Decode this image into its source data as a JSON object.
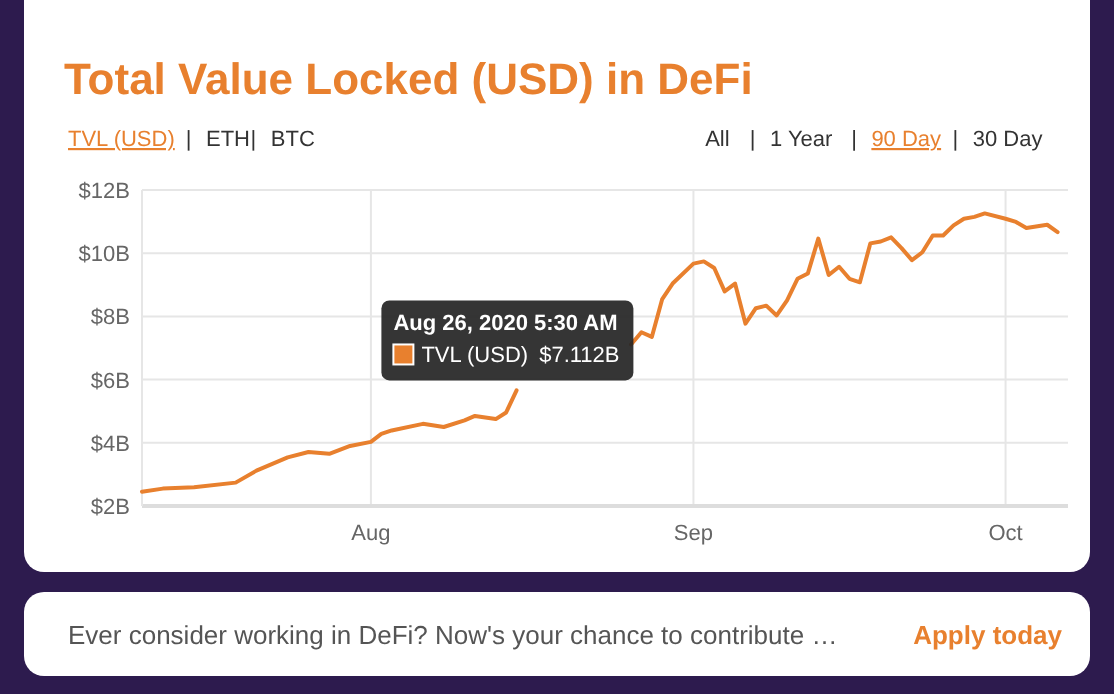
{
  "chart_data": {
    "type": "line",
    "title": "Total Value Locked (USD) in DeFi",
    "x": [
      "2020-07-10",
      "2020-07-12",
      "2020-07-15",
      "2020-07-19",
      "2020-07-21",
      "2020-07-24",
      "2020-07-26",
      "2020-07-28",
      "2020-07-30",
      "2020-08-01",
      "2020-08-02",
      "2020-08-03",
      "2020-08-06",
      "2020-08-08",
      "2020-08-10",
      "2020-08-11",
      "2020-08-13",
      "2020-08-14",
      "2020-08-15",
      "2020-08-16",
      "2020-08-20",
      "2020-08-24",
      "2020-08-26",
      "2020-08-27",
      "2020-08-28",
      "2020-08-29",
      "2020-08-30",
      "2020-09-01",
      "2020-09-02",
      "2020-09-03",
      "2020-09-04",
      "2020-09-05",
      "2020-09-06",
      "2020-09-07",
      "2020-09-08",
      "2020-09-09",
      "2020-09-10",
      "2020-09-11",
      "2020-09-12",
      "2020-09-13",
      "2020-09-14",
      "2020-09-15",
      "2020-09-16",
      "2020-09-17",
      "2020-09-18",
      "2020-09-19",
      "2020-09-20",
      "2020-09-21",
      "2020-09-22",
      "2020-09-23",
      "2020-09-24",
      "2020-09-25",
      "2020-09-26",
      "2020-09-27",
      "2020-09-28",
      "2020-09-29",
      "2020-10-01",
      "2020-10-02",
      "2020-10-03",
      "2020-10-05",
      "2020-10-06"
    ],
    "series": [
      {
        "name": "TVL (USD)",
        "color": "#e8802e",
        "values": [
          2.45,
          2.55,
          2.59,
          2.74,
          3.12,
          3.54,
          3.71,
          3.65,
          3.9,
          4.03,
          4.28,
          4.39,
          4.6,
          4.5,
          4.71,
          4.85,
          4.75,
          4.96,
          5.66,
          null,
          null,
          null,
          7.112,
          7.5,
          7.35,
          8.55,
          9.04,
          9.67,
          9.74,
          9.53,
          8.79,
          9.04,
          7.77,
          8.26,
          8.34,
          8.03,
          8.51,
          9.19,
          9.36,
          10.46,
          9.31,
          9.57,
          9.19,
          9.08,
          10.31,
          10.37,
          10.5,
          10.16,
          9.78,
          10.03,
          10.56,
          10.56,
          10.88,
          11.09,
          11.15,
          11.26,
          11.09,
          10.99,
          10.8,
          10.9,
          10.67
        ]
      }
    ],
    "xlim": [
      "2020-07-10",
      "2020-10-07"
    ],
    "xticks": [
      {
        "value": "2020-08-01",
        "label": "Aug"
      },
      {
        "value": "2020-09-01",
        "label": "Sep"
      },
      {
        "value": "2020-10-01",
        "label": "Oct"
      }
    ],
    "ylim": [
      2,
      12
    ],
    "yticks": [
      {
        "value": 2,
        "label": "$2B"
      },
      {
        "value": 4,
        "label": "$4B"
      },
      {
        "value": 6,
        "label": "$6B"
      },
      {
        "value": 8,
        "label": "$8B"
      },
      {
        "value": 10,
        "label": "$10B"
      },
      {
        "value": 12,
        "label": "$12B"
      }
    ],
    "grid": true,
    "marker": "none",
    "line_style": "solid",
    "annotations": [
      "TVL (USD)",
      "|",
      "ETH",
      "|",
      "BTC",
      "All",
      "|",
      "1 Year",
      "|",
      "90 Day",
      "|",
      "30 Day",
      "Ever consider working in DeFi? Now's your chance to contribute …",
      "Apply today",
      "$7.112B",
      {
        "text": "Aug 26, 2020 5:30 AM",
        "x": "2020-08-26T05:30",
        "y": 7.112
      }
    ]
  }
}
